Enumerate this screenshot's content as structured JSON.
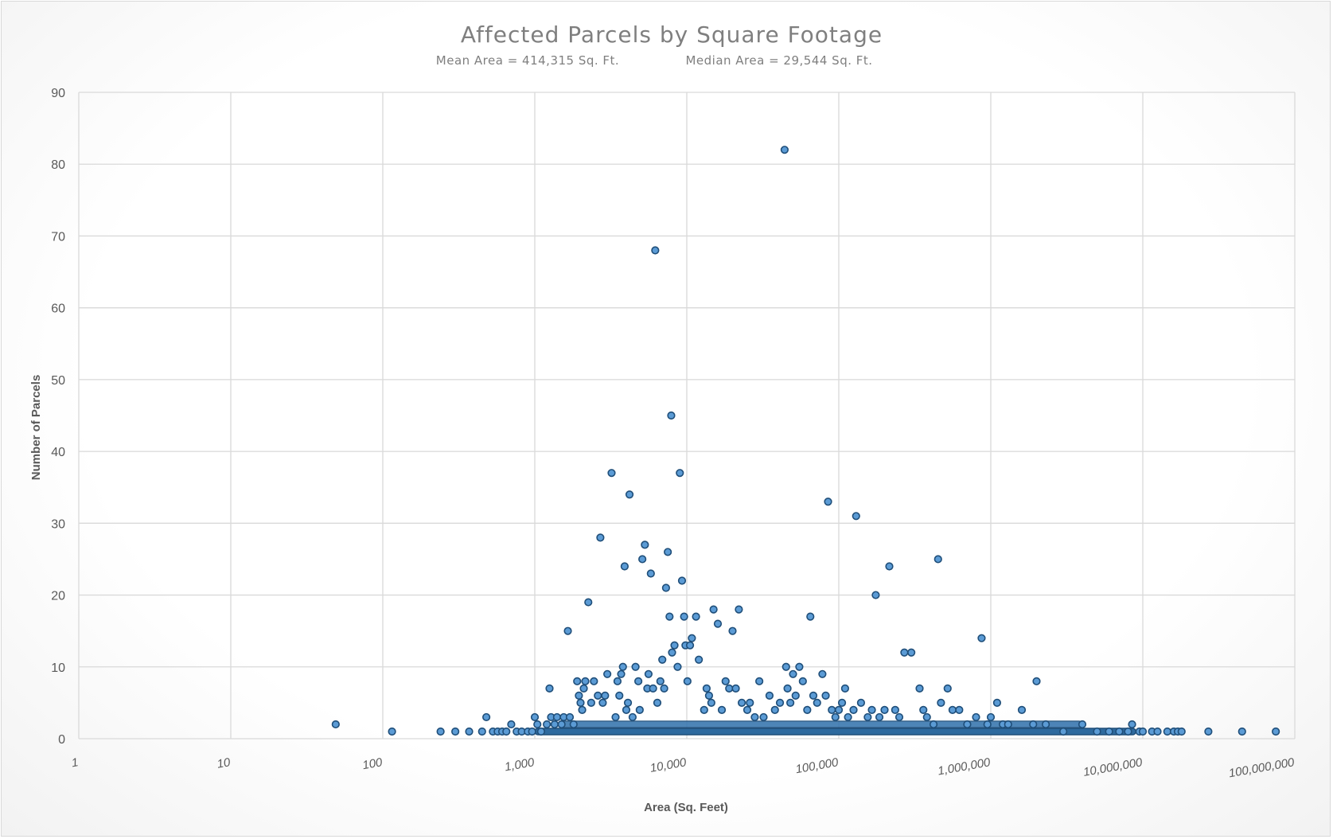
{
  "chart_data": {
    "type": "scatter",
    "title": "Affected Parcels by Square Footage",
    "subtitle_left": "Mean Area = 414,315 Sq. Ft.",
    "subtitle_right": "Median Area = 29,544 Sq. Ft.",
    "xlabel": "Area (Sq. Feet)",
    "ylabel": "Number of Parcels",
    "x_scale": "log",
    "xlim": [
      1,
      100000000
    ],
    "ylim": [
      0,
      90
    ],
    "grid": true,
    "x_ticks": [
      "1",
      "10",
      "100",
      "1,000",
      "10,000",
      "100,000",
      "1,000,000",
      "10,000,000",
      "100,000,000"
    ],
    "y_ticks": [
      "0",
      "10",
      "20",
      "30",
      "40",
      "50",
      "60",
      "70",
      "80",
      "90"
    ],
    "marker_fill": "#5b9bd5",
    "marker_stroke": "#1f4e79",
    "series": [
      {
        "points": [
          [
            49,
            2
          ],
          [
            115,
            1
          ],
          [
            240,
            1
          ],
          [
            300,
            1
          ],
          [
            370,
            1
          ],
          [
            450,
            1
          ],
          [
            480,
            3
          ],
          [
            530,
            1
          ],
          [
            570,
            1
          ],
          [
            610,
            1
          ],
          [
            650,
            1
          ],
          [
            700,
            2
          ],
          [
            760,
            1
          ],
          [
            820,
            1
          ],
          [
            900,
            1
          ],
          [
            960,
            1
          ],
          [
            1000,
            3
          ],
          [
            1040,
            2
          ],
          [
            1100,
            1
          ],
          [
            1200,
            2
          ],
          [
            1250,
            7
          ],
          [
            1280,
            3
          ],
          [
            1350,
            2
          ],
          [
            1400,
            3
          ],
          [
            1500,
            2
          ],
          [
            1550,
            3
          ],
          [
            1650,
            15
          ],
          [
            1700,
            3
          ],
          [
            1800,
            2
          ],
          [
            1900,
            8
          ],
          [
            1950,
            6
          ],
          [
            2000,
            5
          ],
          [
            2050,
            4
          ],
          [
            2100,
            7
          ],
          [
            2150,
            8
          ],
          [
            2250,
            19
          ],
          [
            2350,
            5
          ],
          [
            2450,
            8
          ],
          [
            2600,
            6
          ],
          [
            2700,
            28
          ],
          [
            2800,
            5
          ],
          [
            2900,
            6
          ],
          [
            3000,
            9
          ],
          [
            3200,
            37
          ],
          [
            3400,
            3
          ],
          [
            3500,
            8
          ],
          [
            3600,
            6
          ],
          [
            3700,
            9
          ],
          [
            3800,
            10
          ],
          [
            3900,
            24
          ],
          [
            4000,
            4
          ],
          [
            4100,
            5
          ],
          [
            4200,
            34
          ],
          [
            4400,
            3
          ],
          [
            4600,
            10
          ],
          [
            4800,
            8
          ],
          [
            4900,
            4
          ],
          [
            5100,
            25
          ],
          [
            5300,
            27
          ],
          [
            5500,
            7
          ],
          [
            5600,
            9
          ],
          [
            5800,
            23
          ],
          [
            6000,
            7
          ],
          [
            6200,
            68
          ],
          [
            6400,
            5
          ],
          [
            6700,
            8
          ],
          [
            6900,
            11
          ],
          [
            7100,
            7
          ],
          [
            7300,
            21
          ],
          [
            7500,
            26
          ],
          [
            7700,
            17
          ],
          [
            7900,
            45
          ],
          [
            8000,
            12
          ],
          [
            8300,
            13
          ],
          [
            8700,
            10
          ],
          [
            9000,
            37
          ],
          [
            9300,
            22
          ],
          [
            9600,
            17
          ],
          [
            9800,
            13
          ],
          [
            10100,
            8
          ],
          [
            10500,
            13
          ],
          [
            10800,
            14
          ],
          [
            11500,
            17
          ],
          [
            12000,
            11
          ],
          [
            13000,
            4
          ],
          [
            13500,
            7
          ],
          [
            14000,
            6
          ],
          [
            14500,
            5
          ],
          [
            15000,
            18
          ],
          [
            16000,
            16
          ],
          [
            17000,
            4
          ],
          [
            18000,
            8
          ],
          [
            19000,
            7
          ],
          [
            20000,
            15
          ],
          [
            21000,
            7
          ],
          [
            22000,
            18
          ],
          [
            23000,
            5
          ],
          [
            25000,
            4
          ],
          [
            26000,
            5
          ],
          [
            28000,
            3
          ],
          [
            30000,
            8
          ],
          [
            32000,
            3
          ],
          [
            35000,
            6
          ],
          [
            38000,
            4
          ],
          [
            41000,
            5
          ],
          [
            44000,
            82
          ],
          [
            45000,
            10
          ],
          [
            46000,
            7
          ],
          [
            48000,
            5
          ],
          [
            50000,
            9
          ],
          [
            52000,
            6
          ],
          [
            55000,
            10
          ],
          [
            58000,
            8
          ],
          [
            62000,
            4
          ],
          [
            65000,
            17
          ],
          [
            68000,
            6
          ],
          [
            72000,
            5
          ],
          [
            78000,
            9
          ],
          [
            82000,
            6
          ],
          [
            85000,
            33
          ],
          [
            90000,
            4
          ],
          [
            95000,
            3
          ],
          [
            100000,
            4
          ],
          [
            105000,
            5
          ],
          [
            110000,
            7
          ],
          [
            115000,
            3
          ],
          [
            125000,
            4
          ],
          [
            130000,
            31
          ],
          [
            140000,
            5
          ],
          [
            155000,
            3
          ],
          [
            165000,
            4
          ],
          [
            175000,
            20
          ],
          [
            185000,
            3
          ],
          [
            200000,
            4
          ],
          [
            215000,
            24
          ],
          [
            235000,
            4
          ],
          [
            250000,
            3
          ],
          [
            270000,
            12
          ],
          [
            300000,
            12
          ],
          [
            340000,
            7
          ],
          [
            360000,
            4
          ],
          [
            380000,
            3
          ],
          [
            420000,
            2
          ],
          [
            450000,
            25
          ],
          [
            470000,
            5
          ],
          [
            520000,
            7
          ],
          [
            560000,
            4
          ],
          [
            620000,
            4
          ],
          [
            700000,
            2
          ],
          [
            800000,
            3
          ],
          [
            870000,
            14
          ],
          [
            950000,
            2
          ],
          [
            1000000,
            3
          ],
          [
            1100000,
            5
          ],
          [
            1200000,
            2
          ],
          [
            1300000,
            2
          ],
          [
            1600000,
            4
          ],
          [
            1900000,
            2
          ],
          [
            2000000,
            8
          ],
          [
            2300000,
            2
          ],
          [
            3000000,
            1
          ],
          [
            4000000,
            2
          ],
          [
            5000000,
            1
          ],
          [
            6000000,
            1
          ],
          [
            7000000,
            1
          ],
          [
            8000000,
            1
          ],
          [
            8500000,
            2
          ],
          [
            9500000,
            1
          ],
          [
            10000000,
            1
          ],
          [
            11500000,
            1
          ],
          [
            12500000,
            1
          ],
          [
            14500000,
            1
          ],
          [
            16000000,
            1
          ],
          [
            17000000,
            1
          ],
          [
            18000000,
            1
          ],
          [
            27000000,
            1
          ],
          [
            45000000,
            1
          ],
          [
            75000000,
            1
          ]
        ]
      }
    ]
  }
}
